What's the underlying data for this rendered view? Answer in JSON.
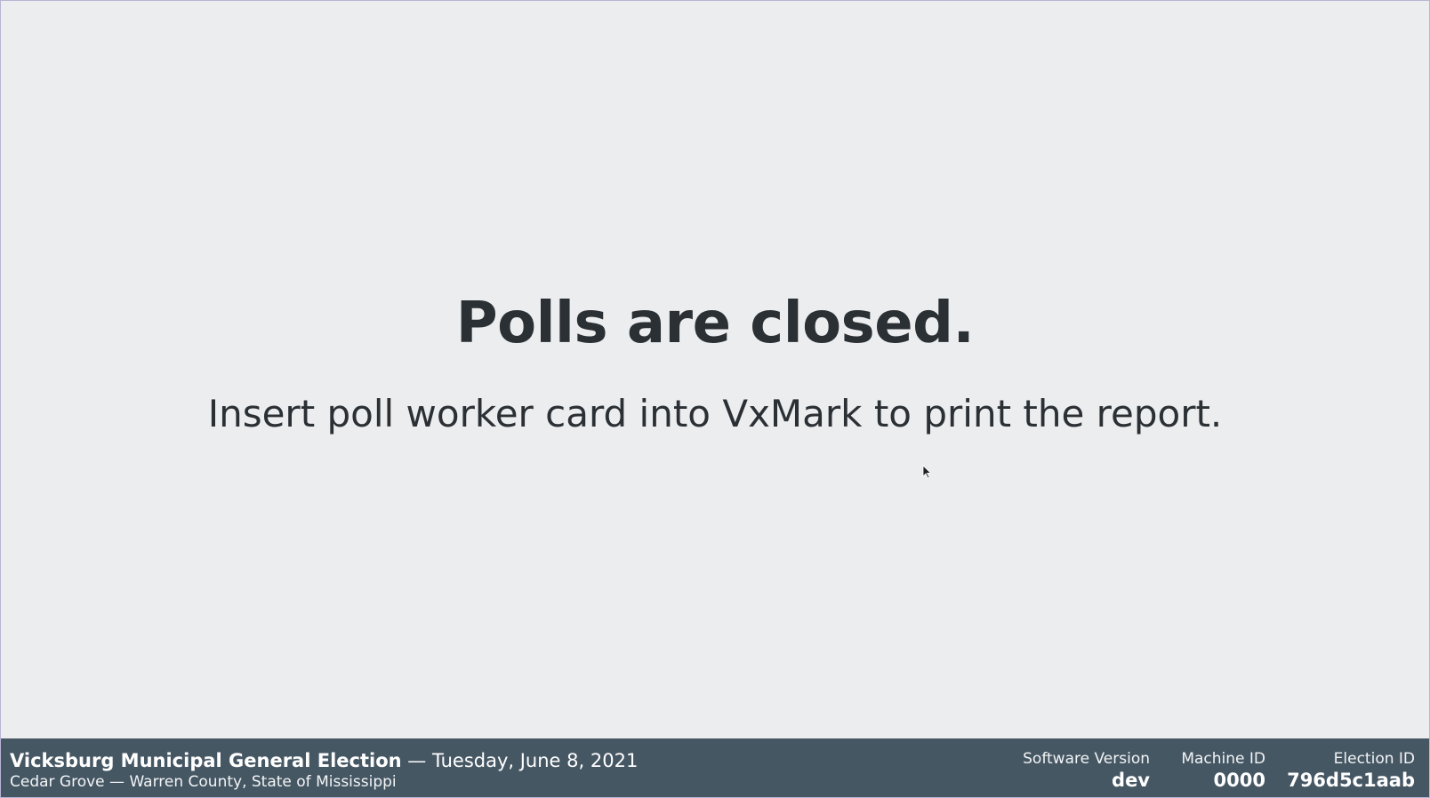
{
  "main": {
    "headline": "Polls are closed.",
    "instruction": "Insert poll worker card into VxMark to print the report."
  },
  "footer": {
    "election_title": "Vicksburg Municipal General Election",
    "separator": " — ",
    "election_date": "Tuesday, June 8, 2021",
    "location": "Cedar Grove — Warren County, State of Mississippi",
    "software_version_label": "Software Version",
    "software_version_value": "dev",
    "machine_id_label": "Machine ID",
    "machine_id_value": "0000",
    "election_id_label": "Election ID",
    "election_id_value": "796d5c1aab"
  },
  "colors": {
    "background": "#ecedef",
    "footer_background": "#465764",
    "text": "#2b3035"
  },
  "icons": {
    "cursor": "mouse-pointer-icon"
  }
}
